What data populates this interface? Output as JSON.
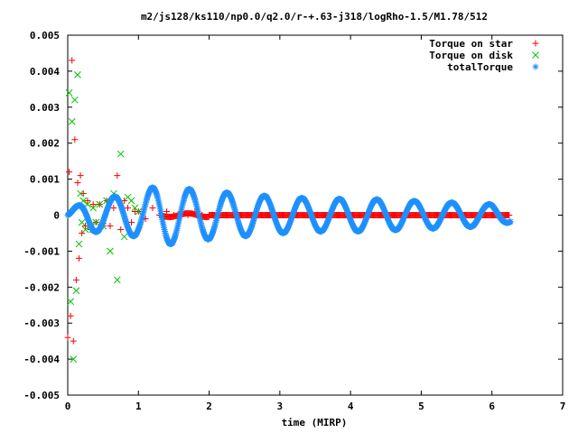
{
  "chart_data": {
    "type": "scatter",
    "title": "m2/js128/ks110/np0.0/q2.0/r-+.63-j318/logRho-1.5/M1.78/512",
    "xlabel": "time (MIRP)",
    "ylabel": "",
    "xlim": [
      0,
      7
    ],
    "ylim": [
      -0.005,
      0.005
    ],
    "xticks": [
      0,
      1,
      2,
      3,
      4,
      5,
      6,
      7
    ],
    "xtick_labels": [
      "0",
      "1",
      "2",
      "3",
      "4",
      "5",
      "6",
      "7"
    ],
    "yticks": [
      -0.005,
      -0.004,
      -0.003,
      -0.002,
      -0.001,
      0,
      0.001,
      0.002,
      0.003,
      0.004,
      0.005
    ],
    "ytick_labels": [
      "-0.005",
      "-0.004",
      "-0.003",
      "-0.002",
      "-0.001",
      "0",
      "0.001",
      "0.002",
      "0.003",
      "0.004",
      "0.005"
    ],
    "grid": false,
    "legend_position": "top-right",
    "series": [
      {
        "name": "Torque on star",
        "marker": "+",
        "color": "#ff0000",
        "x": [
          0.0,
          0.02,
          0.04,
          0.06,
          0.08,
          0.1,
          0.12,
          0.14,
          0.16,
          0.18,
          0.2,
          0.22,
          0.25,
          0.28,
          0.32,
          0.36,
          0.4,
          0.45,
          0.5,
          0.55,
          0.6,
          0.65,
          0.7,
          0.75,
          0.8,
          0.85,
          0.9,
          0.95,
          1.0,
          1.1,
          1.2,
          1.3,
          1.4,
          1.5,
          1.6,
          1.7,
          1.8,
          1.9,
          2.0,
          2.2,
          2.4,
          2.6,
          2.8,
          3.0,
          3.2,
          3.4,
          3.6,
          3.8,
          4.0,
          4.2,
          4.4,
          4.6,
          4.8,
          5.0,
          5.2,
          5.4,
          5.6,
          5.8,
          6.0,
          6.2
        ],
        "y": [
          -0.0034,
          0.0012,
          -0.0028,
          0.0043,
          -0.0035,
          0.0021,
          -0.0018,
          0.0009,
          -0.0012,
          0.0011,
          -0.0005,
          0.0006,
          -0.0003,
          0.0004,
          -0.0004,
          0.0003,
          -0.0002,
          0.0003,
          -0.0003,
          0.0004,
          -0.0003,
          0.0002,
          0.0011,
          -0.0004,
          0.0004,
          0.0002,
          -0.0002,
          0.0001,
          0.0001,
          -0.0001,
          0.0002,
          0.0,
          0.0001,
          0.0,
          0.0001,
          0.0,
          0.0001,
          0.0,
          0.0,
          0.0,
          0.0,
          0.0,
          0.0,
          0.0,
          0.0,
          0.0,
          0.0,
          0.0,
          0.0,
          0.0,
          0.0,
          0.0,
          0.0,
          0.0,
          0.0,
          0.0,
          0.0,
          0.0,
          0.0,
          0.0
        ]
      },
      {
        "name": "Torque on disk",
        "marker": "x",
        "color": "#00c000",
        "x": [
          0.02,
          0.04,
          0.06,
          0.08,
          0.1,
          0.12,
          0.14,
          0.16,
          0.18,
          0.2,
          0.22,
          0.25,
          0.28,
          0.32,
          0.36,
          0.4,
          0.45,
          0.5,
          0.55,
          0.6,
          0.65,
          0.7,
          0.75,
          0.8,
          0.85,
          0.9,
          0.95,
          1.0
        ],
        "y": [
          0.0034,
          -0.0024,
          0.0026,
          -0.004,
          0.0032,
          -0.0021,
          0.0039,
          -0.0008,
          0.0006,
          -0.0002,
          0.0004,
          -0.0004,
          0.0003,
          -0.0003,
          0.0002,
          -0.0002,
          0.0003,
          -0.0003,
          0.0004,
          -0.001,
          0.0006,
          -0.0018,
          0.0017,
          -0.0006,
          0.0005,
          0.0004,
          0.0002,
          0.0001
        ]
      },
      {
        "name": "totalTorque",
        "marker": "*",
        "color": "#1e90ff",
        "period": 0.53,
        "amplitude_points": [
          [
            0.0,
            0.0001
          ],
          [
            0.3,
            0.00045
          ],
          [
            0.6,
            0.0005
          ],
          [
            1.0,
            0.0006
          ],
          [
            1.3,
            0.00085
          ],
          [
            1.8,
            0.0007
          ],
          [
            2.4,
            0.0006
          ],
          [
            3.0,
            0.0005
          ],
          [
            3.6,
            0.00045
          ],
          [
            4.2,
            0.00045
          ],
          [
            4.8,
            0.0004
          ],
          [
            5.4,
            0.00035
          ],
          [
            6.0,
            0.0003
          ],
          [
            6.25,
            0.0002
          ]
        ],
        "x_range": [
          0.0,
          6.27
        ]
      }
    ]
  }
}
